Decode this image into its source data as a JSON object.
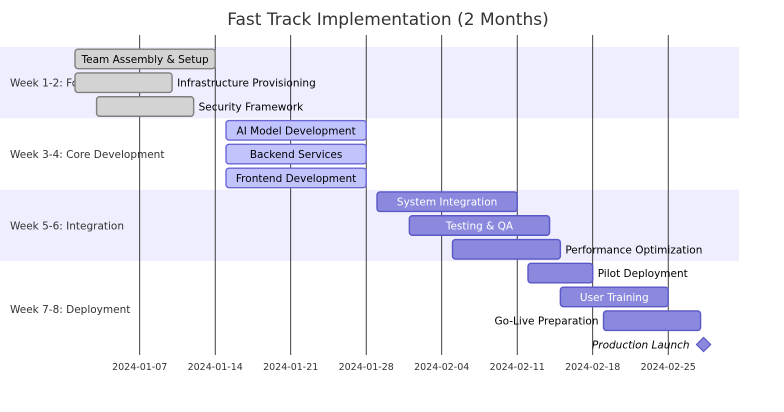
{
  "title": "Fast Track Implementation (2 Months)",
  "colors": {
    "band_odd": "#eeeefe",
    "band_even": "#fefec8",
    "grid": "#111111",
    "done_fill": "#d3d3d3",
    "done_stroke": "#7f7f7f",
    "active_fill": "#c0c3fc",
    "active_stroke": "#6a66d6",
    "pending_fill": "#8a89dd",
    "pending_stroke": "#5a57c6"
  },
  "chart_data": {
    "type": "gantt",
    "x_ticks": [
      "2024-01-07",
      "2024-01-14",
      "2024-01-21",
      "2024-01-28",
      "2024-02-04",
      "2024-02-11",
      "2024-02-18",
      "2024-02-25"
    ],
    "sections": [
      {
        "name": "Week 1-2: Foundation",
        "rows": 3
      },
      {
        "name": "Week 3-4: Core Development",
        "rows": 3
      },
      {
        "name": "Week 5-6: Integration",
        "rows": 3
      },
      {
        "name": "Week 7-8: Deployment",
        "rows": 4
      }
    ],
    "tasks": [
      {
        "name": "Team Assembly & Setup",
        "start": "2024-01-01",
        "end": "2024-01-14",
        "status": "done",
        "label_pos": "inside"
      },
      {
        "name": "Infrastructure Provisioning",
        "start": "2024-01-01",
        "end": "2024-01-10",
        "status": "done",
        "label_pos": "right"
      },
      {
        "name": "Security Framework",
        "start": "2024-01-03",
        "end": "2024-01-12",
        "status": "done",
        "label_pos": "right"
      },
      {
        "name": "AI Model Development",
        "start": "2024-01-15",
        "end": "2024-01-28",
        "status": "active",
        "label_pos": "inside"
      },
      {
        "name": "Backend Services",
        "start": "2024-01-15",
        "end": "2024-01-28",
        "status": "active",
        "label_pos": "inside"
      },
      {
        "name": "Frontend Development",
        "start": "2024-01-15",
        "end": "2024-01-28",
        "status": "active",
        "label_pos": "inside"
      },
      {
        "name": "System Integration",
        "start": "2024-01-29",
        "end": "2024-02-11",
        "status": "pending",
        "label_pos": "inside"
      },
      {
        "name": "Testing & QA",
        "start": "2024-02-01",
        "end": "2024-02-14",
        "status": "pending",
        "label_pos": "inside"
      },
      {
        "name": "Performance Optimization",
        "start": "2024-02-05",
        "end": "2024-02-15",
        "status": "pending",
        "label_pos": "right"
      },
      {
        "name": "Pilot Deployment",
        "start": "2024-02-12",
        "end": "2024-02-18",
        "status": "pending",
        "label_pos": "right"
      },
      {
        "name": "User Training",
        "start": "2024-02-15",
        "end": "2024-02-25",
        "status": "pending",
        "label_pos": "inside"
      },
      {
        "name": "Go-Live Preparation",
        "start": "2024-02-19",
        "end": "2024-02-28",
        "status": "pending",
        "label_pos": "left"
      },
      {
        "name": "Production Launch",
        "start": "2024-02-28",
        "end": "2024-02-28",
        "status": "milestone",
        "label_pos": "left"
      }
    ]
  }
}
